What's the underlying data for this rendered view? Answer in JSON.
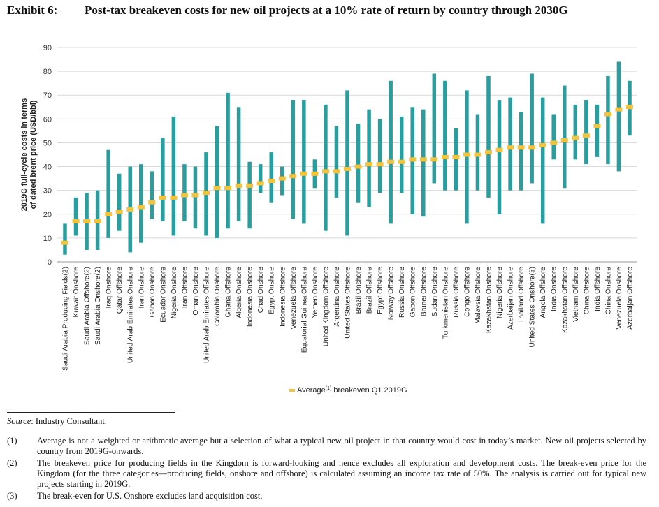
{
  "header": {
    "exhibit_label": "Exhibit 6:",
    "title": "Post-tax breakeven costs for new oil projects at a 10% rate of return by country through 2030G"
  },
  "chart_data": {
    "type": "range-bar",
    "ylabel_line1": "2019G full-cycle costs in terms",
    "ylabel_line2": "of dated brent price (USD/bbl)",
    "ylim": [
      0,
      90
    ],
    "yticks": [
      "0",
      "10",
      "20",
      "30",
      "40",
      "50",
      "60",
      "70",
      "80",
      "90"
    ],
    "grid": true,
    "legend": {
      "position": "bottom-center",
      "label_main": "Average",
      "label_sup": "(1)",
      "label_rest": " breakeven Q1 2019G"
    },
    "colors": {
      "range_bar": "#2a9d9f",
      "average_marker": "#f5c33b",
      "grid": "#d9d9d9",
      "axis_text": "#333333"
    },
    "categories": [
      "Saudi Arabia  Producing Fields(2)",
      "Kuwait Onshore",
      "Saudi Arabia Offshore(2)",
      "Saudi Arabia Onshore(2)",
      "Iraq Onshore",
      "Qatar Offshore",
      "United Arab Emirates Onshore",
      "Iran Onshore",
      "Gabon Onshore",
      "Ecuador Onshore",
      "Nigeria Onshore",
      "Iran Offshore",
      "Oman Onshore",
      "United Arab Emirates Offshore",
      "Colombia Onshore",
      "Ghana Offshore",
      "Algeria Onshore",
      "Indonesia Onshore",
      "Chad Onshore",
      "Egypt Onshore",
      "Indonesia Offshore",
      "Venezuela Offshore",
      "Equatorial Guinea Offshore",
      "Yemen Onshore",
      "United Kingdom Offshore",
      "Argentina Onshore",
      "United States Offshore",
      "Brazil Onshore",
      "Brazil Offshore",
      "Egypt Offshore",
      "Norway Offshore",
      "Russia Onshore",
      "Gabon Offshore",
      "Brunei Offshore",
      "Sudan Onshore",
      "Turkmenistan Onshore",
      "Russia Offshore",
      "Congo Offshore",
      "Malaysia Offshore",
      "Kazakhstan Onshore",
      "Nigeria Offshore",
      "Azerbaijan Onshore",
      "Thailand Offshore",
      "United States Onshore(3)",
      "Angola Offshore",
      "India Onshore",
      "Kazakhstan Offshore",
      "Vietnam Offshore",
      "China Offshore",
      "India Offshore",
      "China Onshore",
      "Venezuela Onshore",
      "Azerbaijan Offshore"
    ],
    "low": [
      3,
      11,
      5,
      5,
      10,
      13,
      4,
      8,
      18,
      17,
      11,
      17,
      14,
      11,
      10,
      14,
      17,
      14,
      29,
      25,
      28,
      18,
      16,
      31,
      13,
      27,
      11,
      25,
      23,
      29,
      16,
      29,
      20,
      19,
      33,
      30,
      30,
      16,
      30,
      27,
      20,
      30,
      30,
      33,
      16,
      43,
      31,
      43,
      41,
      44,
      41,
      38,
      53
    ],
    "high": [
      16,
      27,
      29,
      30,
      47,
      37,
      40,
      41,
      38,
      52,
      61,
      41,
      40,
      46,
      57,
      71,
      65,
      42,
      41,
      46,
      40,
      68,
      68,
      43,
      66,
      57,
      72,
      58,
      64,
      60,
      76,
      61,
      65,
      64,
      79,
      76,
      56,
      72,
      62,
      78,
      68,
      69,
      63,
      79,
      69,
      62,
      74,
      66,
      68,
      66,
      78,
      84,
      76
    ],
    "average": [
      8,
      17,
      17,
      17,
      20,
      21,
      22,
      23,
      25,
      27,
      27,
      28,
      28,
      29,
      31,
      31,
      32,
      32,
      33,
      34,
      35,
      36,
      37,
      37,
      38,
      38,
      39,
      40,
      41,
      41,
      42,
      42,
      43,
      43,
      43,
      44,
      44,
      45,
      45,
      46,
      47,
      48,
      48,
      48,
      49,
      50,
      51,
      52,
      53,
      57,
      62,
      64,
      65
    ]
  },
  "source": {
    "label": "Source",
    "text": ": Industry Consultant."
  },
  "notes": [
    {
      "num": "(1)",
      "text": "Average is not a weighted or arithmetic average but a selection of what a typical new oil project in that country would cost in today’s market. New oil projects selected by country from 2019G-onwards."
    },
    {
      "num": "(2)",
      "text": "The breakeven price for producing fields in the Kingdom is forward-looking and hence excludes all exploration and development costs. The break-even price for the Kingdom (for the three categories—producing fields, onshore and offshore) is calculated assuming an income tax rate of 50%. The analysis is carried out for typical new projects starting in 2019G."
    },
    {
      "num": "(3)",
      "text": "The break-even for U.S. Onshore excludes land acquisition cost."
    }
  ]
}
